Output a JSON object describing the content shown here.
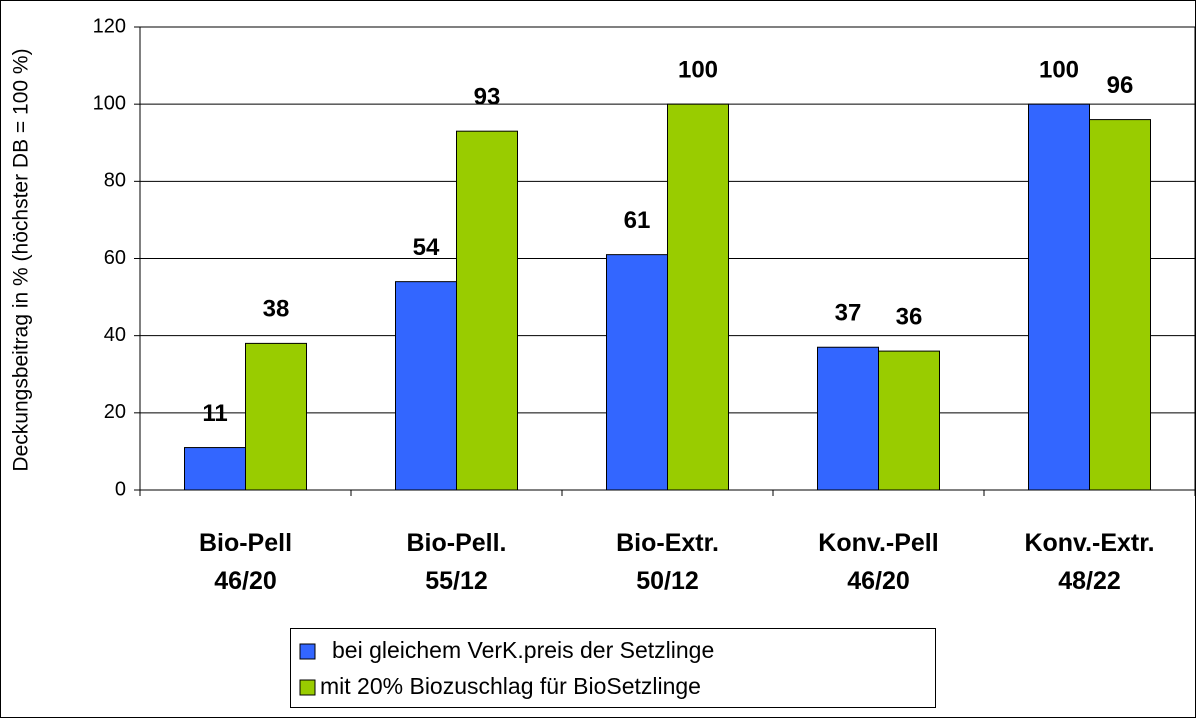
{
  "chart_data": {
    "type": "bar",
    "y_label": "Deckungsbeitrag in % (höchster DB = 100 %)",
    "categories": [
      "Bio-Pell\n46/20",
      "Bio-Pell.\n55/12",
      "Bio-Extr.\n50/12",
      "Konv.-Pell\n46/20",
      "Konv.-Extr.\n48/22"
    ],
    "series": [
      {
        "name": "bei gleichem VerK.preis der Setzlinge",
        "color": "#3366ff",
        "values": [
          11,
          54,
          61,
          37,
          100
        ]
      },
      {
        "name": "mit 20% Biozuschlag für BioSetzlinge",
        "color": "#99cc00",
        "values": [
          38,
          93,
          100,
          36,
          96
        ]
      }
    ],
    "ylim": [
      0,
      120
    ],
    "yticks": [
      0,
      20,
      40,
      60,
      80,
      100,
      120
    ],
    "grid": true,
    "legend": "bottom"
  }
}
